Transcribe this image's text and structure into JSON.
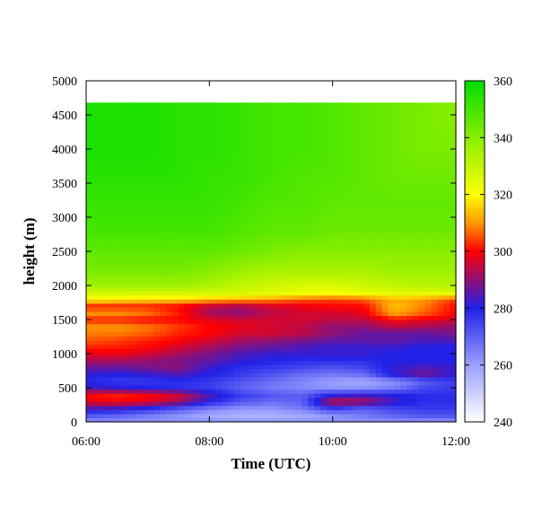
{
  "chart_data": {
    "type": "heatmap",
    "title": "",
    "xlabel": "Time (UTC)",
    "ylabel": "height (m)",
    "xlim": [
      "06:00",
      "12:00"
    ],
    "xlim_hours": [
      6,
      12
    ],
    "ylim": [
      0,
      5000
    ],
    "x_ticks": [
      {
        "label": "06:00",
        "value": 6
      },
      {
        "label": "08:00",
        "value": 8
      },
      {
        "label": "10:00",
        "value": 10
      },
      {
        "label": "12:00",
        "value": 12
      }
    ],
    "y_ticks": [
      0,
      500,
      1000,
      1500,
      2000,
      2500,
      3000,
      3500,
      4000,
      4500,
      5000
    ],
    "colorbar": {
      "range": [
        240,
        360
      ],
      "ticks": [
        240,
        260,
        280,
        300,
        320,
        340,
        360
      ],
      "colormap": [
        {
          "value": 240,
          "color": "#ffffff"
        },
        {
          "value": 260,
          "color": "#9aa0ff"
        },
        {
          "value": 280,
          "color": "#2020e8"
        },
        {
          "value": 300,
          "color": "#ff0000"
        },
        {
          "value": 310,
          "color": "#ff9900"
        },
        {
          "value": 320,
          "color": "#ffff00"
        },
        {
          "value": 340,
          "color": "#88ee00"
        },
        {
          "value": 360,
          "color": "#00dd00"
        }
      ]
    },
    "data_top_height": 4680,
    "height_levels": [
      0,
      100,
      200,
      300,
      400,
      500,
      600,
      700,
      800,
      900,
      1000,
      1100,
      1200,
      1300,
      1400,
      1500,
      1600,
      1700,
      1800,
      1900,
      2000,
      2200,
      2500,
      2800,
      3200,
      3600,
      4000,
      4400,
      4680
    ],
    "time_hours": [
      6,
      6.5,
      7,
      7.5,
      8,
      8.5,
      9,
      9.5,
      10,
      10.5,
      11,
      11.5,
      12
    ],
    "values": [
      [
        262,
        262,
        262,
        262,
        262,
        262,
        262,
        262,
        262,
        262,
        262,
        262,
        262
      ],
      [
        272,
        270,
        266,
        262,
        258,
        256,
        256,
        258,
        262,
        266,
        270,
        272,
        272
      ],
      [
        284,
        282,
        278,
        272,
        266,
        262,
        262,
        266,
        276,
        270,
        274,
        276,
        276
      ],
      [
        298,
        300,
        298,
        292,
        280,
        272,
        268,
        270,
        296,
        294,
        284,
        278,
        278
      ],
      [
        300,
        302,
        300,
        296,
        284,
        276,
        272,
        270,
        280,
        282,
        280,
        278,
        278
      ],
      [
        284,
        282,
        280,
        278,
        276,
        270,
        266,
        264,
        262,
        262,
        266,
        274,
        276
      ],
      [
        278,
        276,
        276,
        278,
        276,
        272,
        268,
        264,
        260,
        258,
        262,
        270,
        276
      ],
      [
        282,
        280,
        282,
        284,
        280,
        276,
        272,
        268,
        266,
        268,
        282,
        288,
        282
      ],
      [
        286,
        286,
        288,
        290,
        282,
        278,
        276,
        274,
        272,
        274,
        282,
        284,
        282
      ],
      [
        292,
        292,
        290,
        288,
        286,
        282,
        280,
        278,
        278,
        278,
        280,
        280,
        280
      ],
      [
        298,
        298,
        296,
        292,
        288,
        284,
        282,
        282,
        282,
        282,
        280,
        280,
        280
      ],
      [
        302,
        302,
        300,
        296,
        292,
        288,
        286,
        284,
        282,
        282,
        282,
        280,
        280
      ],
      [
        306,
        304,
        302,
        300,
        296,
        292,
        290,
        288,
        286,
        286,
        286,
        284,
        284
      ],
      [
        308,
        308,
        306,
        302,
        300,
        296,
        296,
        294,
        290,
        286,
        286,
        286,
        288
      ],
      [
        310,
        310,
        308,
        304,
        300,
        298,
        296,
        294,
        290,
        290,
        294,
        292,
        290
      ],
      [
        302,
        302,
        300,
        300,
        298,
        296,
        296,
        296,
        294,
        294,
        300,
        298,
        296
      ],
      [
        310,
        310,
        308,
        302,
        292,
        290,
        294,
        296,
        296,
        298,
        312,
        306,
        300
      ],
      [
        302,
        302,
        302,
        300,
        294,
        292,
        296,
        298,
        300,
        300,
        314,
        308,
        300
      ],
      [
        320,
        318,
        316,
        316,
        314,
        312,
        310,
        306,
        304,
        306,
        312,
        310,
        304
      ],
      [
        328,
        328,
        328,
        328,
        328,
        328,
        326,
        324,
        322,
        324,
        326,
        326,
        326
      ],
      [
        336,
        336,
        336,
        336,
        334,
        330,
        328,
        326,
        326,
        328,
        330,
        332,
        332
      ],
      [
        342,
        342,
        342,
        342,
        340,
        336,
        334,
        334,
        334,
        334,
        336,
        336,
        336
      ],
      [
        346,
        346,
        346,
        346,
        346,
        344,
        342,
        340,
        340,
        340,
        340,
        340,
        340
      ],
      [
        350,
        350,
        350,
        350,
        350,
        348,
        346,
        346,
        344,
        344,
        344,
        344,
        344
      ],
      [
        352,
        352,
        352,
        352,
        352,
        350,
        348,
        348,
        346,
        346,
        346,
        346,
        346
      ],
      [
        354,
        354,
        354,
        354,
        352,
        352,
        350,
        348,
        348,
        346,
        344,
        344,
        344
      ],
      [
        356,
        356,
        356,
        354,
        354,
        352,
        350,
        350,
        348,
        346,
        344,
        342,
        342
      ],
      [
        356,
        356,
        356,
        354,
        354,
        352,
        350,
        350,
        348,
        346,
        344,
        342,
        340
      ]
    ]
  }
}
